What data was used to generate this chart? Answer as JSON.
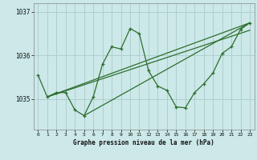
{
  "title": "Graphe pression niveau de la mer (hPa)",
  "bg_color": "#cce8e8",
  "grid_color": "#aacccc",
  "line_color": "#2d6e2d",
  "xlim": [
    -0.5,
    23.5
  ],
  "ylim": [
    1034.3,
    1037.2
  ],
  "yticks": [
    1035,
    1036,
    1037
  ],
  "ytick_labels": [
    "1035",
    "1036",
    "1037"
  ],
  "xticks": [
    0,
    1,
    2,
    3,
    4,
    5,
    6,
    7,
    8,
    9,
    10,
    11,
    12,
    13,
    14,
    15,
    16,
    17,
    18,
    19,
    20,
    21,
    22,
    23
  ],
  "main_line_x": [
    0,
    1,
    2,
    3,
    4,
    5,
    6,
    7,
    8,
    9,
    10,
    11,
    12,
    13,
    14,
    15,
    16,
    17,
    18,
    19,
    20,
    21,
    22,
    23
  ],
  "main_line_y": [
    1035.55,
    1035.05,
    1035.15,
    1035.15,
    1034.75,
    1034.62,
    1035.05,
    1035.8,
    1036.2,
    1036.15,
    1036.62,
    1036.5,
    1035.65,
    1035.3,
    1035.2,
    1034.82,
    1034.8,
    1035.15,
    1035.35,
    1035.6,
    1036.05,
    1036.2,
    1036.6,
    1036.75
  ],
  "trend_lines": [
    {
      "x": [
        1,
        23
      ],
      "y": [
        1035.05,
        1036.75
      ]
    },
    {
      "x": [
        1,
        23
      ],
      "y": [
        1035.05,
        1036.58
      ]
    },
    {
      "x": [
        5,
        23
      ],
      "y": [
        1034.62,
        1036.75
      ]
    }
  ]
}
